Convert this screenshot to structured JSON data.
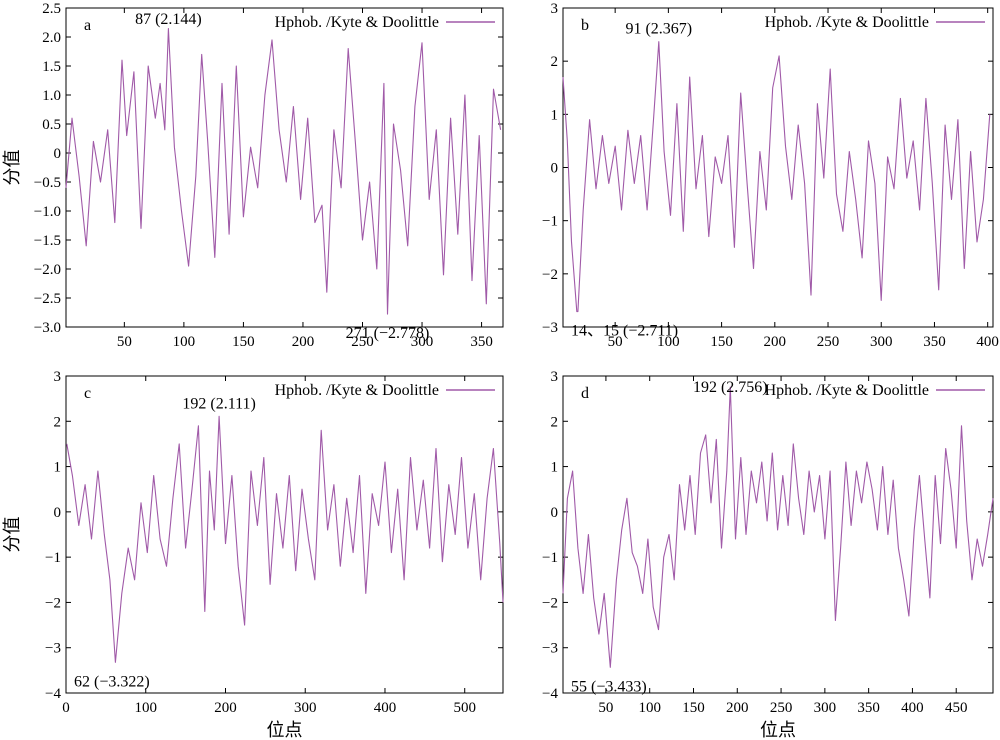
{
  "figure": {
    "xlabel": "位点",
    "ylabel": "分值"
  },
  "chart_data": [
    {
      "type": "line",
      "panel_label": "a",
      "legend": "Hphob. /Kyte & Doolittle",
      "line_color": "#a05aa8",
      "xlim": [
        1,
        368
      ],
      "ylim": [
        -3.0,
        2.5
      ],
      "xticks": [
        50,
        100,
        150,
        200,
        250,
        300,
        350
      ],
      "yticks": [
        -3.0,
        -2.5,
        -2.0,
        -1.5,
        -1.0,
        -0.5,
        0,
        0.5,
        1.0,
        1.5,
        2.0,
        2.5
      ],
      "ytick_labels": [
        "−3.0",
        "−2.5",
        "−2.0",
        "−1.5",
        "−1.0",
        "−0.5",
        "0",
        "0.5",
        "1.0",
        "1.5",
        "2.0",
        "2.5"
      ],
      "show_xlabel": false,
      "show_ylabel": true,
      "annotations": [
        {
          "x": 87,
          "y": 2.144,
          "text": "87 (2.144)",
          "position": "above"
        },
        {
          "x": 271,
          "y": -2.778,
          "text": "271 (−2.778)",
          "position": "below"
        }
      ],
      "x": [
        1,
        6,
        12,
        18,
        24,
        30,
        36,
        42,
        48,
        52,
        58,
        64,
        70,
        76,
        80,
        84,
        87,
        92,
        98,
        104,
        110,
        115,
        120,
        126,
        132,
        138,
        144,
        150,
        156,
        162,
        168,
        174,
        180,
        186,
        192,
        198,
        204,
        210,
        216,
        220,
        226,
        232,
        238,
        244,
        250,
        256,
        262,
        268,
        271,
        276,
        282,
        288,
        294,
        300,
        306,
        312,
        318,
        324,
        330,
        336,
        342,
        348,
        354,
        360,
        366
      ],
      "y": [
        -0.6,
        0.6,
        -0.4,
        -1.6,
        0.2,
        -0.5,
        0.4,
        -1.2,
        1.6,
        0.3,
        1.4,
        -1.3,
        1.5,
        0.6,
        1.2,
        0.4,
        2.144,
        0.1,
        -1.0,
        -1.95,
        -0.4,
        1.7,
        0.2,
        -1.8,
        1.2,
        -1.4,
        1.5,
        -1.1,
        0.1,
        -0.6,
        1.0,
        1.95,
        0.4,
        -0.5,
        0.8,
        -0.8,
        0.6,
        -1.2,
        -0.9,
        -2.4,
        0.4,
        -0.6,
        1.8,
        0.2,
        -1.5,
        -0.5,
        -2.0,
        1.2,
        -2.778,
        0.5,
        -0.3,
        -1.6,
        0.8,
        1.9,
        -0.8,
        0.4,
        -2.1,
        0.6,
        -1.4,
        1.0,
        -2.2,
        0.3,
        -2.6,
        1.1,
        0.4
      ]
    },
    {
      "type": "line",
      "panel_label": "b",
      "legend": "Hphob. /Kyte & Doolittle",
      "line_color": "#a05aa8",
      "xlim": [
        1,
        405
      ],
      "ylim": [
        -3,
        3
      ],
      "xticks": [
        50,
        100,
        150,
        200,
        250,
        300,
        350,
        400
      ],
      "yticks": [
        -3,
        -2,
        -1,
        0,
        1,
        2,
        3
      ],
      "ytick_labels": [
        "−3",
        "−2",
        "−1",
        "0",
        "1",
        "2",
        "3"
      ],
      "show_xlabel": false,
      "show_ylabel": false,
      "annotations": [
        {
          "x": 91,
          "y": 2.367,
          "text": "91 (2.367)",
          "position": "above"
        },
        {
          "x": 14,
          "y": -2.711,
          "text": "14、15 (−2.711)",
          "position": "below"
        }
      ],
      "x": [
        1,
        5,
        9,
        14,
        15,
        20,
        26,
        32,
        38,
        44,
        50,
        56,
        62,
        68,
        74,
        80,
        86,
        91,
        96,
        102,
        108,
        114,
        120,
        126,
        132,
        138,
        144,
        150,
        156,
        162,
        168,
        174,
        180,
        186,
        192,
        198,
        204,
        210,
        216,
        222,
        228,
        234,
        240,
        246,
        252,
        258,
        264,
        270,
        276,
        282,
        288,
        294,
        300,
        306,
        312,
        318,
        324,
        330,
        336,
        342,
        348,
        354,
        360,
        366,
        372,
        378,
        384,
        390,
        396,
        402
      ],
      "y": [
        1.7,
        0.5,
        -1.4,
        -2.711,
        -2.711,
        -0.8,
        0.9,
        -0.4,
        0.6,
        -0.3,
        0.4,
        -0.8,
        0.7,
        -0.3,
        0.6,
        -0.8,
        0.9,
        2.367,
        0.3,
        -0.9,
        1.2,
        -1.2,
        1.7,
        -0.4,
        0.6,
        -1.3,
        0.2,
        -0.3,
        0.6,
        -1.5,
        1.4,
        -0.3,
        -1.9,
        0.3,
        -0.8,
        1.5,
        2.1,
        0.4,
        -0.6,
        0.8,
        -0.3,
        -2.4,
        1.2,
        -0.2,
        1.85,
        -0.5,
        -1.2,
        0.3,
        -0.6,
        -1.7,
        0.5,
        -0.3,
        -2.5,
        0.2,
        -0.4,
        1.3,
        -0.2,
        0.5,
        -0.8,
        1.3,
        -0.3,
        -2.3,
        0.8,
        -0.6,
        0.9,
        -1.9,
        0.3,
        -1.4,
        -0.6,
        1.0
      ]
    },
    {
      "type": "line",
      "panel_label": "c",
      "legend": "Hphob. /Kyte & Doolittle",
      "line_color": "#a05aa8",
      "xlim": [
        0,
        548
      ],
      "ylim": [
        -4,
        3
      ],
      "xticks": [
        0,
        100,
        200,
        300,
        400,
        500
      ],
      "yticks": [
        -4,
        -3,
        -2,
        -1,
        0,
        1,
        2,
        3
      ],
      "ytick_labels": [
        "−4",
        "−3",
        "−2",
        "−1",
        "0",
        "1",
        "2",
        "3"
      ],
      "show_xlabel": true,
      "show_ylabel": true,
      "annotations": [
        {
          "x": 192,
          "y": 2.111,
          "text": "192 (2.111)",
          "position": "above"
        },
        {
          "x": 62,
          "y": -3.322,
          "text": "62 (−3.322)",
          "position": "below"
        }
      ],
      "x": [
        1,
        8,
        16,
        24,
        32,
        40,
        48,
        55,
        62,
        70,
        78,
        86,
        94,
        102,
        110,
        118,
        126,
        134,
        142,
        150,
        158,
        166,
        174,
        180,
        186,
        192,
        200,
        208,
        216,
        224,
        232,
        240,
        248,
        256,
        264,
        272,
        280,
        288,
        296,
        304,
        312,
        320,
        328,
        336,
        344,
        352,
        360,
        368,
        376,
        384,
        392,
        400,
        408,
        416,
        424,
        432,
        440,
        448,
        456,
        464,
        472,
        480,
        488,
        496,
        504,
        512,
        520,
        528,
        536,
        544,
        548
      ],
      "y": [
        1.5,
        0.8,
        -0.3,
        0.6,
        -0.6,
        0.9,
        -0.5,
        -1.5,
        -3.322,
        -1.8,
        -0.8,
        -1.5,
        0.2,
        -0.9,
        0.8,
        -0.6,
        -1.2,
        0.3,
        1.5,
        -0.8,
        0.5,
        1.9,
        -2.2,
        0.9,
        -0.4,
        2.111,
        -0.7,
        0.8,
        -1.2,
        -2.5,
        0.9,
        -0.3,
        1.2,
        -1.6,
        0.4,
        -0.8,
        0.8,
        -1.3,
        0.5,
        -0.6,
        -1.5,
        1.8,
        -0.4,
        0.6,
        -1.2,
        0.3,
        -0.9,
        0.8,
        -1.8,
        0.4,
        -0.3,
        1.1,
        -0.9,
        0.5,
        -1.5,
        1.2,
        -0.4,
        0.7,
        -0.8,
        1.4,
        -1.1,
        0.6,
        -0.5,
        1.2,
        -0.8,
        0.4,
        -1.5,
        0.3,
        1.4,
        -0.7,
        -2.0
      ]
    },
    {
      "type": "line",
      "panel_label": "d",
      "legend": "Hphob. /Kyte & Doolittle",
      "line_color": "#a05aa8",
      "xlim": [
        1,
        492
      ],
      "ylim": [
        -4,
        3
      ],
      "xticks": [
        50,
        100,
        150,
        200,
        250,
        300,
        350,
        400,
        450
      ],
      "yticks": [
        -4,
        -3,
        -2,
        -1,
        0,
        1,
        2,
        3
      ],
      "ytick_labels": [
        "−4",
        "−3",
        "−2",
        "−1",
        "0",
        "1",
        "2",
        "3"
      ],
      "show_xlabel": true,
      "show_ylabel": false,
      "annotations": [
        {
          "x": 192,
          "y": 2.756,
          "text": "192 (2.756)",
          "position": "above"
        },
        {
          "x": 55,
          "y": -3.433,
          "text": "55 (−3.433)",
          "position": "below"
        }
      ],
      "x": [
        1,
        6,
        12,
        18,
        24,
        30,
        36,
        42,
        48,
        55,
        62,
        68,
        74,
        80,
        86,
        92,
        98,
        104,
        110,
        116,
        122,
        128,
        134,
        140,
        146,
        152,
        158,
        164,
        170,
        176,
        182,
        188,
        192,
        198,
        204,
        210,
        216,
        222,
        228,
        234,
        240,
        246,
        252,
        258,
        264,
        270,
        276,
        282,
        288,
        294,
        300,
        306,
        312,
        318,
        324,
        330,
        336,
        342,
        348,
        354,
        360,
        366,
        372,
        378,
        384,
        390,
        396,
        402,
        408,
        414,
        420,
        426,
        432,
        438,
        444,
        450,
        456,
        462,
        468,
        474,
        480,
        486,
        492
      ],
      "y": [
        -1.8,
        0.3,
        0.9,
        -0.8,
        -1.8,
        -0.5,
        -1.9,
        -2.7,
        -1.8,
        -3.433,
        -1.5,
        -0.4,
        0.3,
        -0.9,
        -1.2,
        -1.8,
        -0.6,
        -2.1,
        -2.6,
        -1.0,
        -0.5,
        -1.5,
        0.6,
        -0.4,
        0.8,
        -0.5,
        1.3,
        1.7,
        0.2,
        1.6,
        -0.8,
        0.9,
        2.756,
        -0.6,
        1.2,
        -0.5,
        0.9,
        0.2,
        1.1,
        -0.2,
        1.3,
        -0.4,
        0.8,
        -0.3,
        1.5,
        0.3,
        -0.5,
        0.9,
        0.0,
        0.8,
        -0.6,
        0.9,
        -2.4,
        -0.8,
        1.1,
        -0.3,
        0.9,
        0.2,
        1.1,
        0.5,
        -0.4,
        1.0,
        -0.5,
        0.7,
        -0.8,
        -1.5,
        -2.3,
        -0.4,
        0.8,
        -0.6,
        -1.9,
        0.8,
        -0.7,
        1.4,
        0.5,
        -0.8,
        1.9,
        -0.2,
        -1.5,
        -0.6,
        -1.2,
        -0.5,
        0.3
      ]
    }
  ]
}
